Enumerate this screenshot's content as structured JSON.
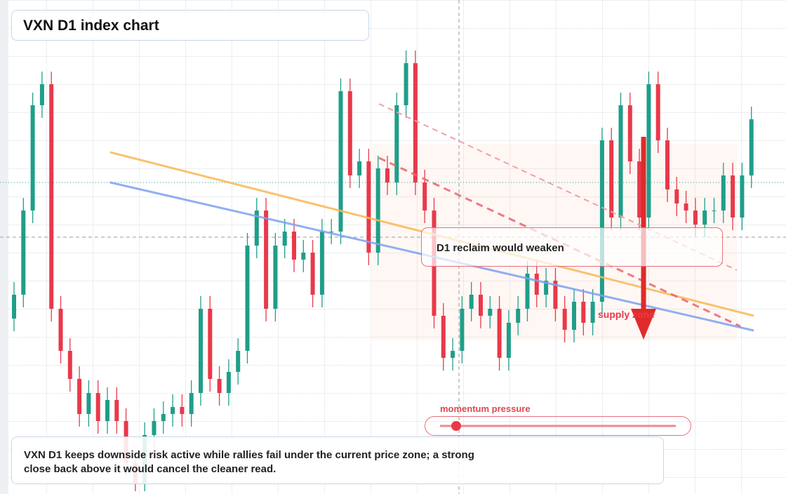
{
  "title": "VXN D1 index chart",
  "callout": "D1 reclaim would weaken",
  "zone_label": "supply zone",
  "slider_label": "momentum pressure",
  "note": "VXN D1 keeps downside risk active while rallies fail under the current price zone; a strong close back above it would cancel the cleaner read.",
  "chart_data": {
    "type": "candlestick",
    "ylim": [
      0,
      704
    ],
    "up_color": "#1f9e89",
    "down_color": "#e8394a",
    "open": [
      250,
      284,
      404,
      554,
      584,
      264,
      204,
      164,
      114,
      144,
      104,
      134,
      104,
      44,
      14,
      84,
      104,
      114,
      124,
      114,
      144,
      264,
      164,
      144,
      174,
      204,
      354,
      404,
      264,
      354,
      374,
      334,
      344,
      284,
      374,
      374,
      574,
      454,
      474,
      344,
      464,
      444,
      554,
      614,
      444,
      404,
      254,
      194,
      204,
      264,
      284,
      254,
      264,
      194,
      244,
      264,
      314,
      284,
      304,
      264,
      234,
      274,
      244,
      274,
      504,
      394,
      554,
      474,
      394,
      584,
      504,
      434,
      414,
      404,
      384,
      404,
      404,
      454,
      394,
      454
    ],
    "high": [
      302,
      422,
      572,
      602,
      602,
      282,
      222,
      182,
      162,
      162,
      152,
      152,
      122,
      62,
      102,
      122,
      132,
      142,
      142,
      162,
      282,
      282,
      182,
      192,
      222,
      372,
      422,
      422,
      372,
      392,
      392,
      362,
      362,
      392,
      392,
      592,
      592,
      492,
      492,
      482,
      482,
      572,
      632,
      632,
      462,
      422,
      272,
      222,
      282,
      302,
      302,
      282,
      282,
      262,
      282,
      332,
      332,
      322,
      322,
      282,
      292,
      292,
      292,
      522,
      522,
      572,
      572,
      492,
      602,
      602,
      522,
      452,
      432,
      422,
      422,
      422,
      472,
      472,
      472,
      552
    ],
    "low": [
      232,
      266,
      386,
      536,
      246,
      186,
      146,
      96,
      96,
      86,
      86,
      86,
      26,
      4,
      4,
      66,
      86,
      96,
      96,
      96,
      126,
      146,
      126,
      126,
      156,
      186,
      336,
      246,
      246,
      336,
      316,
      316,
      266,
      266,
      356,
      356,
      436,
      436,
      326,
      326,
      426,
      426,
      536,
      426,
      386,
      236,
      176,
      176,
      186,
      246,
      236,
      236,
      176,
      176,
      226,
      246,
      266,
      266,
      246,
      216,
      216,
      226,
      226,
      256,
      376,
      376,
      456,
      376,
      376,
      486,
      416,
      396,
      386,
      366,
      366,
      386,
      386,
      376,
      376,
      436
    ],
    "close": [
      284,
      404,
      554,
      584,
      264,
      204,
      164,
      114,
      144,
      104,
      134,
      104,
      44,
      14,
      84,
      104,
      114,
      124,
      114,
      144,
      264,
      164,
      144,
      174,
      204,
      354,
      404,
      264,
      354,
      374,
      334,
      344,
      284,
      374,
      374,
      574,
      454,
      474,
      344,
      464,
      444,
      554,
      614,
      444,
      404,
      254,
      194,
      204,
      264,
      284,
      254,
      264,
      194,
      244,
      264,
      314,
      284,
      304,
      264,
      234,
      274,
      244,
      274,
      504,
      394,
      554,
      474,
      394,
      584,
      504,
      434,
      414,
      404,
      384,
      404,
      404,
      454,
      394,
      454,
      534
    ]
  }
}
